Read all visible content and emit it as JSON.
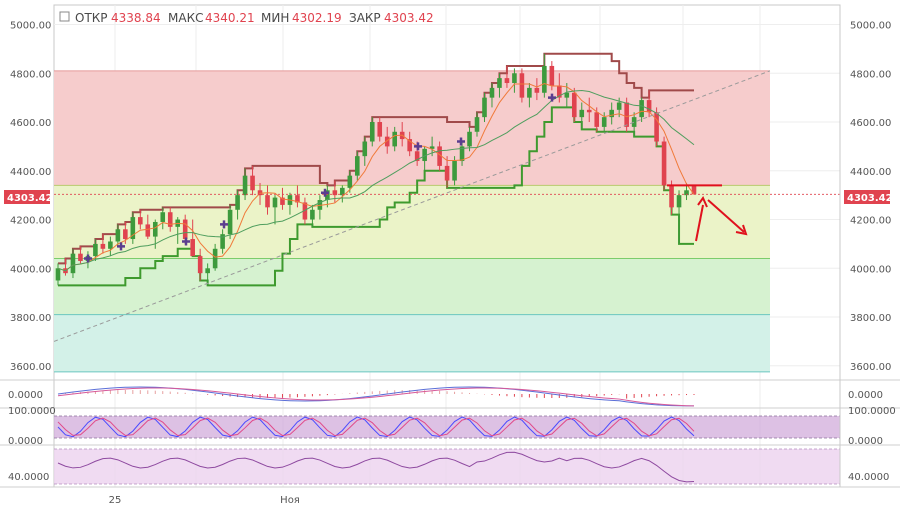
{
  "header": {
    "open_label": "ОТКР",
    "open_value": "4338.84",
    "high_label": "МАКС",
    "high_value": "4340.21",
    "low_label": "МИН",
    "low_value": "4302.19",
    "close_label": "ЗАКР",
    "close_value": "4303.42"
  },
  "colors": {
    "up": "#3d9a3d",
    "down": "#e0434f",
    "zone_red": "#f6cccc",
    "zone_yellow": "#ebf3c8",
    "zone_green": "#d6f2d0",
    "zone_teal": "#d3f1e8",
    "ichimoku_upper": "#a04a4a",
    "ichimoku_lower": "#3e9a2e",
    "pivot_marker": "#5b3e8f",
    "oscillator_band": "#cfa6d8"
  },
  "chart_data": {
    "type": "candlestick",
    "title": "",
    "last_price": "4303.42",
    "y_ticks": [
      "5000.00",
      "4800.00",
      "4600.00",
      "4400.00",
      "4200.00",
      "4000.00",
      "3800.00",
      "3600.00"
    ],
    "x_ticks": [
      "25",
      "Ноя"
    ],
    "ylim": [
      3550,
      5080
    ],
    "zones": [
      {
        "from": 4340,
        "to": 4810,
        "color": "red"
      },
      {
        "from": 4040,
        "to": 4340,
        "color": "yellow"
      },
      {
        "from": 3810,
        "to": 4040,
        "color": "green"
      },
      {
        "from": 3575,
        "to": 3810,
        "color": "teal"
      }
    ],
    "candles": [
      [
        3950,
        4020,
        3930,
        4000
      ],
      [
        4000,
        4040,
        3970,
        3980
      ],
      [
        3980,
        4080,
        3960,
        4060
      ],
      [
        4060,
        4090,
        4020,
        4030
      ],
      [
        4030,
        4070,
        4000,
        4050
      ],
      [
        4050,
        4120,
        4030,
        4100
      ],
      [
        4100,
        4140,
        4060,
        4080
      ],
      [
        4080,
        4130,
        4050,
        4110
      ],
      [
        4110,
        4180,
        4090,
        4160
      ],
      [
        4160,
        4190,
        4100,
        4120
      ],
      [
        4120,
        4230,
        4100,
        4210
      ],
      [
        4210,
        4240,
        4160,
        4180
      ],
      [
        4180,
        4220,
        4120,
        4130
      ],
      [
        4130,
        4200,
        4080,
        4190
      ],
      [
        4190,
        4250,
        4160,
        4230
      ],
      [
        4230,
        4250,
        4150,
        4170
      ],
      [
        4170,
        4210,
        4100,
        4200
      ],
      [
        4200,
        4220,
        4100,
        4120
      ],
      [
        4120,
        4200,
        4050,
        4050
      ],
      [
        4050,
        4080,
        3950,
        3980
      ],
      [
        3980,
        4020,
        3930,
        4000
      ],
      [
        4000,
        4100,
        3990,
        4080
      ],
      [
        4080,
        4160,
        4060,
        4140
      ],
      [
        4140,
        4260,
        4120,
        4240
      ],
      [
        4240,
        4320,
        4200,
        4300
      ],
      [
        4300,
        4410,
        4280,
        4380
      ],
      [
        4380,
        4420,
        4300,
        4320
      ],
      [
        4320,
        4350,
        4260,
        4300
      ],
      [
        4300,
        4340,
        4220,
        4250
      ],
      [
        4250,
        4300,
        4180,
        4290
      ],
      [
        4290,
        4330,
        4240,
        4260
      ],
      [
        4260,
        4310,
        4220,
        4300
      ],
      [
        4300,
        4340,
        4250,
        4270
      ],
      [
        4270,
        4290,
        4180,
        4200
      ],
      [
        4200,
        4260,
        4170,
        4240
      ],
      [
        4240,
        4300,
        4200,
        4280
      ],
      [
        4280,
        4340,
        4250,
        4320
      ],
      [
        4320,
        4360,
        4270,
        4300
      ],
      [
        4300,
        4340,
        4270,
        4330
      ],
      [
        4330,
        4400,
        4310,
        4380
      ],
      [
        4380,
        4480,
        4360,
        4460
      ],
      [
        4460,
        4540,
        4420,
        4520
      ],
      [
        4520,
        4620,
        4500,
        4600
      ],
      [
        4600,
        4620,
        4520,
        4540
      ],
      [
        4540,
        4580,
        4470,
        4500
      ],
      [
        4500,
        4580,
        4480,
        4560
      ],
      [
        4560,
        4600,
        4500,
        4530
      ],
      [
        4530,
        4560,
        4460,
        4480
      ],
      [
        4480,
        4520,
        4420,
        4440
      ],
      [
        4440,
        4500,
        4400,
        4490
      ],
      [
        4490,
        4540,
        4460,
        4500
      ],
      [
        4500,
        4520,
        4400,
        4420
      ],
      [
        4420,
        4460,
        4330,
        4360
      ],
      [
        4360,
        4460,
        4340,
        4440
      ],
      [
        4440,
        4520,
        4420,
        4500
      ],
      [
        4500,
        4580,
        4480,
        4560
      ],
      [
        4560,
        4640,
        4540,
        4620
      ],
      [
        4620,
        4720,
        4600,
        4700
      ],
      [
        4700,
        4760,
        4660,
        4740
      ],
      [
        4740,
        4800,
        4700,
        4780
      ],
      [
        4780,
        4830,
        4740,
        4760
      ],
      [
        4760,
        4820,
        4720,
        4800
      ],
      [
        4800,
        4820,
        4680,
        4700
      ],
      [
        4700,
        4760,
        4660,
        4740
      ],
      [
        4740,
        4780,
        4690,
        4720
      ],
      [
        4720,
        4880,
        4700,
        4830
      ],
      [
        4830,
        4850,
        4730,
        4750
      ],
      [
        4750,
        4800,
        4680,
        4700
      ],
      [
        4700,
        4760,
        4660,
        4720
      ],
      [
        4720,
        4740,
        4600,
        4620
      ],
      [
        4620,
        4680,
        4570,
        4650
      ],
      [
        4650,
        4700,
        4600,
        4640
      ],
      [
        4640,
        4660,
        4560,
        4580
      ],
      [
        4580,
        4640,
        4560,
        4620
      ],
      [
        4620,
        4680,
        4590,
        4650
      ],
      [
        4650,
        4700,
        4620,
        4680
      ],
      [
        4680,
        4700,
        4560,
        4580
      ],
      [
        4580,
        4640,
        4540,
        4620
      ],
      [
        4620,
        4700,
        4600,
        4690
      ],
      [
        4690,
        4730,
        4620,
        4640
      ],
      [
        4640,
        4660,
        4500,
        4520
      ],
      [
        4520,
        4540,
        4320,
        4340
      ],
      [
        4340,
        4360,
        4220,
        4250
      ],
      [
        4250,
        4320,
        4100,
        4300
      ],
      [
        4300,
        4350,
        4280,
        4320
      ],
      [
        4338.84,
        4340.21,
        4302.19,
        4303.42
      ]
    ],
    "oscillator_ticks": [
      "0.0000",
      "100.0000",
      "0.0000",
      "40.0000"
    ]
  }
}
